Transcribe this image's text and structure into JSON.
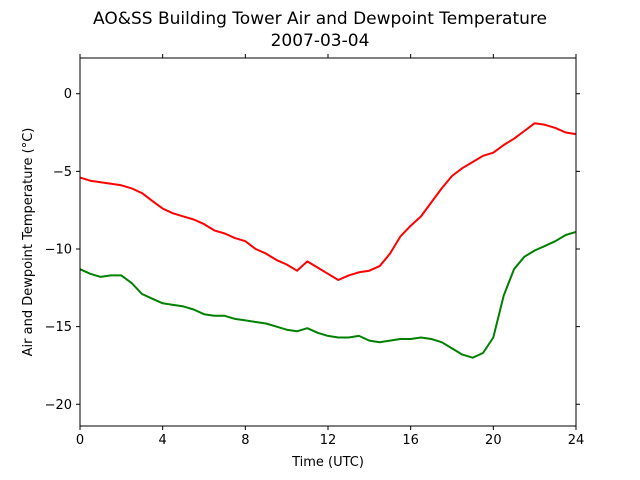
{
  "chart_data": {
    "type": "line",
    "title": "AO&SS Building Tower Air and Dewpoint Temperature",
    "subtitle": "2007-03-04",
    "xlabel": "Time (UTC)",
    "ylabel": "Air and Dewpoint Temperature (°C)",
    "xlim": [
      0,
      24
    ],
    "ylim": [
      -21.4,
      2.3
    ],
    "xticks": [
      0,
      4,
      8,
      12,
      16,
      20,
      24
    ],
    "yticks": [
      0,
      -5,
      -10,
      -15,
      -20
    ],
    "ytick_labels": [
      "0",
      "−5",
      "−10",
      "−15",
      "−20"
    ],
    "grid": false,
    "legend": "none",
    "series": [
      {
        "color": "#ff0000",
        "x": [
          0,
          0.5,
          1,
          1.5,
          2,
          2.5,
          3,
          3.5,
          4,
          4.5,
          5,
          5.5,
          6,
          6.5,
          7,
          7.5,
          8,
          8.5,
          9,
          9.5,
          10,
          10.5,
          11,
          11.5,
          12,
          12.5,
          13,
          13.5,
          14,
          14.5,
          15,
          15.5,
          16,
          16.5,
          17,
          17.5,
          18,
          18.5,
          19,
          19.5,
          20,
          20.5,
          21,
          21.5,
          22,
          22.5,
          23,
          23.5,
          24
        ],
        "values": [
          -5.4,
          -5.6,
          -5.7,
          -5.8,
          -5.9,
          -6.1,
          -6.4,
          -6.9,
          -7.4,
          -7.7,
          -7.9,
          -8.1,
          -8.4,
          -8.8,
          -9.0,
          -9.3,
          -9.5,
          -10.0,
          -10.3,
          -10.7,
          -11.0,
          -11.4,
          -10.8,
          -11.2,
          -11.6,
          -12.0,
          -11.7,
          -11.5,
          -11.4,
          -11.1,
          -10.3,
          -9.2,
          -8.5,
          -7.9,
          -7.0,
          -6.1,
          -5.3,
          -4.8,
          -4.4,
          -4.0,
          -3.8,
          -3.3,
          -2.9,
          -2.4,
          -1.9,
          -2.0,
          -2.2,
          -2.5,
          -2.6
        ]
      },
      {
        "color": "#008000",
        "x": [
          0,
          0.5,
          1,
          1.5,
          2,
          2.5,
          3,
          3.5,
          4,
          4.5,
          5,
          5.5,
          6,
          6.5,
          7,
          7.5,
          8,
          8.5,
          9,
          9.5,
          10,
          10.5,
          11,
          11.5,
          12,
          12.5,
          13,
          13.5,
          14,
          14.5,
          15,
          15.5,
          16,
          16.5,
          17,
          17.5,
          18,
          18.5,
          19,
          19.5,
          20,
          20.5,
          21,
          21.5,
          22,
          22.5,
          23,
          23.5,
          24
        ],
        "values": [
          -11.3,
          -11.6,
          -11.8,
          -11.7,
          -11.7,
          -12.2,
          -12.9,
          -13.2,
          -13.5,
          -13.6,
          -13.7,
          -13.9,
          -14.2,
          -14.3,
          -14.3,
          -14.5,
          -14.6,
          -14.7,
          -14.8,
          -15.0,
          -15.2,
          -15.3,
          -15.1,
          -15.4,
          -15.6,
          -15.7,
          -15.7,
          -15.6,
          -15.9,
          -16.0,
          -15.9,
          -15.8,
          -15.8,
          -15.7,
          -15.8,
          -16.0,
          -16.4,
          -16.8,
          -17.0,
          -16.7,
          -15.7,
          -13.0,
          -11.3,
          -10.5,
          -10.1,
          -9.8,
          -9.5,
          -9.1,
          -8.9
        ]
      }
    ]
  }
}
